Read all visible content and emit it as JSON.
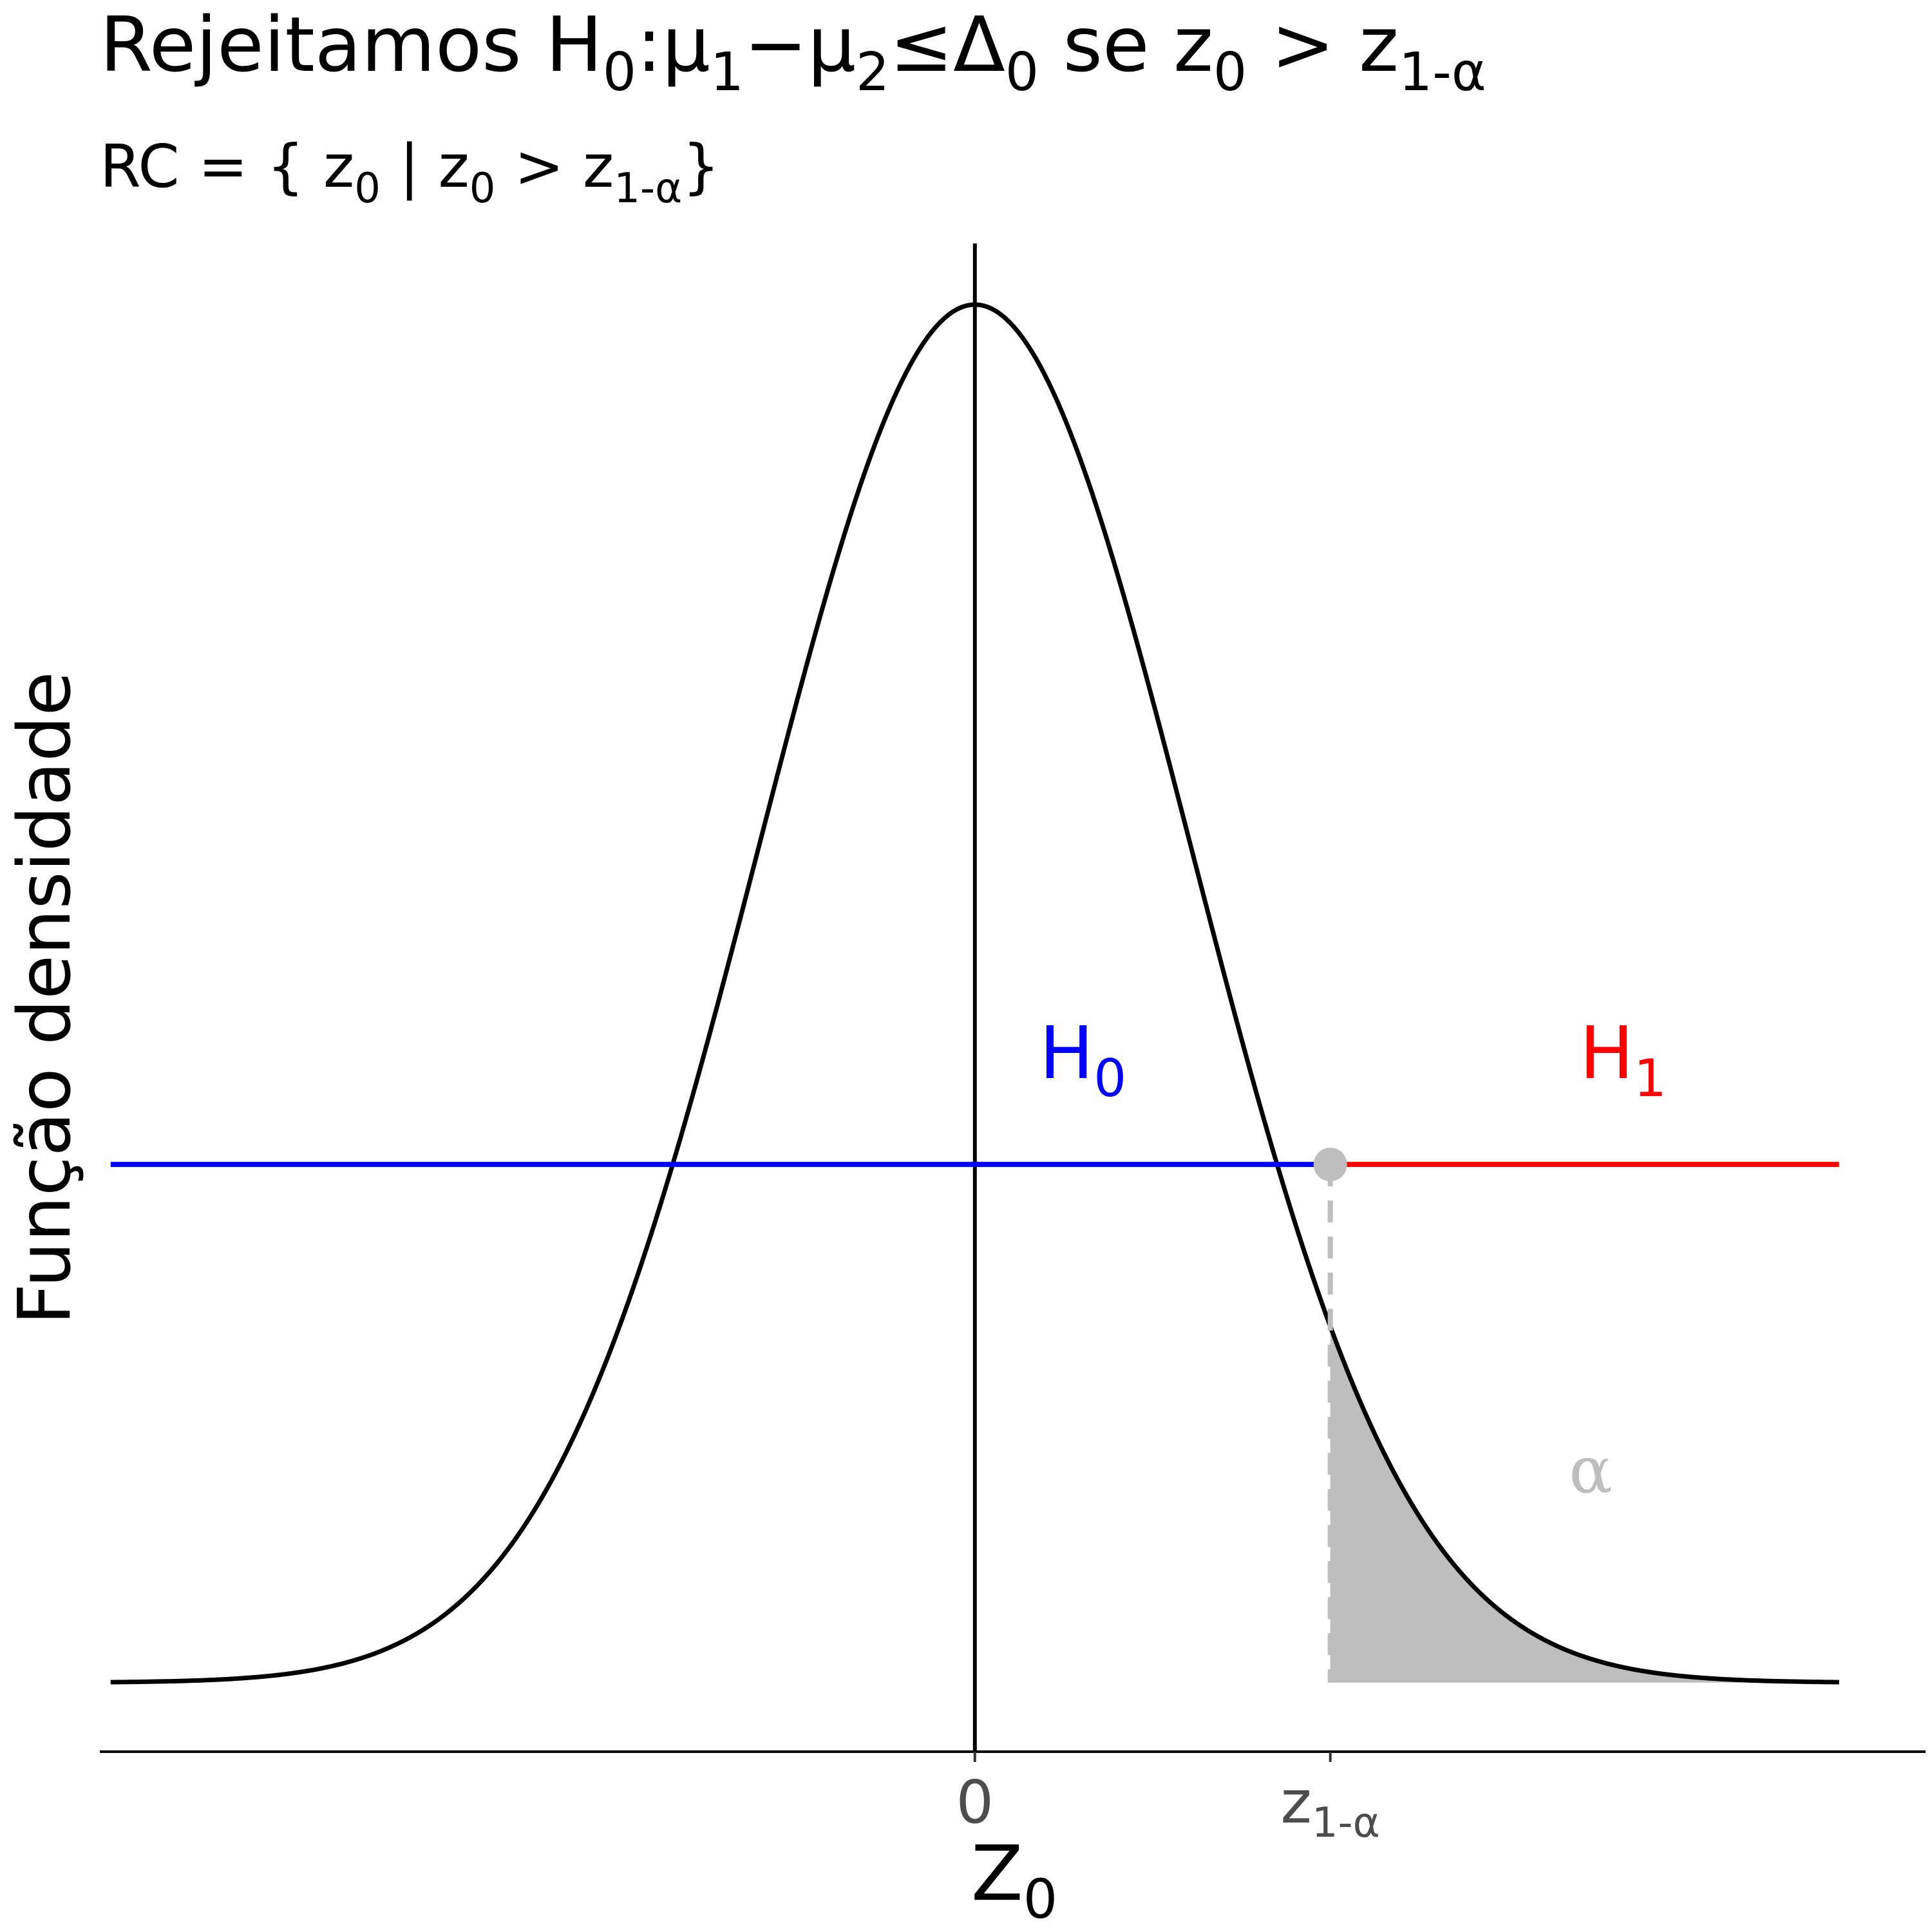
{
  "chart_data": {
    "type": "line",
    "title": {
      "prefix": "Rejeitamos ",
      "h": "H",
      "h_sub": "0",
      "colon": ":",
      "mu": "μ",
      "mu1_sub": "1",
      "minus": "−",
      "mu2_sub": "2",
      "leq": "≤",
      "delta": "Δ",
      "delta_sub": "0",
      "se": " se ",
      "z": "z",
      "z_sub": "0",
      "gt": " > ",
      "zcrit_sub": "1-α"
    },
    "subtitle": {
      "text": "RC = { ",
      "z": "z",
      "z_sub": "0",
      "bar": "  |  ",
      "gt": " > ",
      "zcrit_sub": "1-α",
      "close": "}"
    },
    "ylabel": "Função densidade",
    "xlabel": {
      "base": "Z",
      "sub": "0"
    },
    "x_ticks": [
      {
        "value": 0,
        "label": "0",
        "sub": ""
      },
      {
        "value": 1.645,
        "label": "z",
        "sub": "1-α"
      }
    ],
    "xlim": [
      -4.05,
      4.4
    ],
    "ylim": [
      -0.02,
      0.42
    ],
    "distribution": {
      "name": "normal",
      "mean": 0,
      "sd": 1,
      "x_range": [
        -4,
        4
      ]
    },
    "critical_value": 1.645,
    "shaded_region": {
      "from": 1.645,
      "to": 4,
      "label": "α",
      "label_position": [
        2.85,
        0.055
      ]
    },
    "regions": [
      {
        "name": "H0",
        "base": "H",
        "sub": "0",
        "from": -4,
        "to": 1.645,
        "y": 0.15,
        "label_x": 0.5,
        "label_y": 0.175,
        "color": "#0000ff"
      },
      {
        "name": "H1",
        "base": "H",
        "sub": "1",
        "from": 1.645,
        "to": 4,
        "y": 0.15,
        "label_x": 3,
        "label_y": 0.175,
        "color": "#ff0000"
      }
    ],
    "marker": {
      "x": 1.645,
      "y": 0.15,
      "color": "#bebebe"
    },
    "vline_x": 0,
    "colors": {
      "curve": "#000000",
      "shade": "#bebebe",
      "tick_text": "#4d4d4d"
    },
    "grid": false
  }
}
